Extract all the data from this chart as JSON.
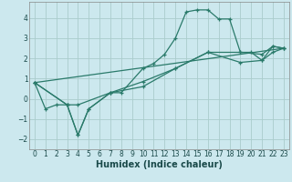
{
  "xlabel": "Humidex (Indice chaleur)",
  "bg_color": "#cce8ee",
  "grid_color": "#aacccc",
  "line_color": "#2a7a6a",
  "xlim": [
    -0.5,
    23.5
  ],
  "ylim": [
    -2.5,
    4.8
  ],
  "lines": [
    {
      "x": [
        0,
        1,
        2,
        3,
        4,
        5,
        7,
        8,
        10,
        11,
        12,
        13,
        14,
        15,
        16,
        17,
        18,
        19,
        20,
        21,
        22,
        23
      ],
      "y": [
        0.8,
        -0.5,
        -0.3,
        -0.3,
        -1.8,
        -0.5,
        0.3,
        0.3,
        1.5,
        1.75,
        2.2,
        3.0,
        4.3,
        4.4,
        4.4,
        3.95,
        3.95,
        2.3,
        2.3,
        1.9,
        2.6,
        2.5
      ],
      "marker": true
    },
    {
      "x": [
        0,
        3,
        4,
        7,
        10,
        13,
        16,
        19,
        21,
        22,
        23
      ],
      "y": [
        0.8,
        -0.3,
        -0.3,
        0.3,
        0.85,
        1.5,
        2.3,
        1.8,
        1.9,
        2.3,
        2.5
      ],
      "marker": true
    },
    {
      "x": [
        0,
        3,
        4,
        5,
        7,
        10,
        13,
        16,
        19,
        21,
        22,
        23
      ],
      "y": [
        0.8,
        -0.3,
        -1.8,
        -0.5,
        0.3,
        0.6,
        1.5,
        2.3,
        2.3,
        2.2,
        2.6,
        2.5
      ],
      "marker": true
    },
    {
      "x": [
        0,
        23
      ],
      "y": [
        0.8,
        2.5
      ],
      "marker": false
    }
  ],
  "yticks": [
    -2,
    -1,
    0,
    1,
    2,
    3,
    4
  ],
  "xticks": [
    0,
    1,
    2,
    3,
    4,
    5,
    6,
    7,
    8,
    9,
    10,
    11,
    12,
    13,
    14,
    15,
    16,
    17,
    18,
    19,
    20,
    21,
    22,
    23
  ],
  "xlabel_fontsize": 7,
  "tick_fontsize": 5.5,
  "ylabel_fontsize": 6
}
